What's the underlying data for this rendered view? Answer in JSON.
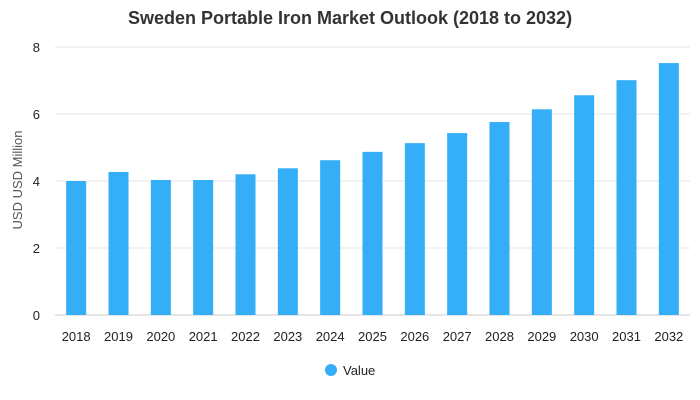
{
  "chart_data": {
    "type": "bar",
    "title": "Sweden Portable Iron Market Outlook (2018 to 2032)",
    "xlabel": "",
    "ylabel": "USD USD Million",
    "categories": [
      "2018",
      "2019",
      "2020",
      "2021",
      "2022",
      "2023",
      "2024",
      "2025",
      "2026",
      "2027",
      "2028",
      "2029",
      "2030",
      "2031",
      "2032"
    ],
    "series": [
      {
        "name": "Value",
        "values": [
          4.0,
          4.27,
          4.03,
          4.03,
          4.2,
          4.38,
          4.62,
          4.87,
          5.13,
          5.43,
          5.76,
          6.14,
          6.56,
          7.01,
          7.52
        ]
      }
    ],
    "ylim": [
      0,
      8
    ],
    "yticks": [
      0,
      2,
      4,
      6,
      8
    ],
    "grid": true,
    "legend_position": "bottom-center",
    "colors": {
      "bar": "#33aef7"
    }
  }
}
